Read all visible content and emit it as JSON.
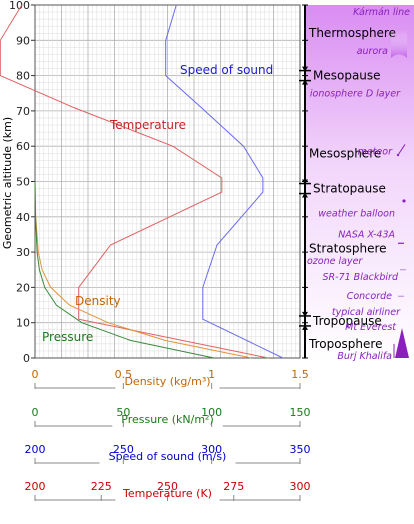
{
  "chart_data": {
    "type": "line",
    "ylabel": "Geometric altitude (km)",
    "ylim": [
      0,
      100
    ],
    "yticks": [
      0,
      10,
      20,
      30,
      40,
      50,
      60,
      70,
      80,
      90,
      100
    ],
    "grid": true,
    "x_axes": [
      {
        "key": "density",
        "label": "Density (kg/m³)",
        "range": [
          0,
          1.5
        ],
        "ticks": [
          "0",
          "0.5",
          "1",
          "1.5"
        ],
        "color": "#c86400"
      },
      {
        "key": "pressure",
        "label": "Pressure (kN/m²)",
        "range": [
          0,
          150
        ],
        "ticks": [
          "0",
          "50",
          "100",
          "150"
        ],
        "color": "#1a7a1a"
      },
      {
        "key": "sound",
        "label": "Speed of sound (m/s)",
        "range": [
          200,
          350
        ],
        "ticks": [
          "200",
          "250",
          "300",
          "350"
        ],
        "color": "#0000cc"
      },
      {
        "key": "temperature",
        "label": "Temperature (K)",
        "range": [
          200,
          300
        ],
        "ticks": [
          "200",
          "225",
          "250",
          "275",
          "300"
        ],
        "color": "#cc0000"
      }
    ],
    "series": [
      {
        "name": "Temperature",
        "axis": "temperature",
        "color": "#e06060",
        "points": [
          [
            288,
            0
          ],
          [
            216.5,
            11
          ],
          [
            216.5,
            20
          ],
          [
            228.5,
            32
          ],
          [
            270.5,
            47
          ],
          [
            270.5,
            51
          ],
          [
            252,
            60
          ],
          [
            214.5,
            71
          ],
          [
            186.9,
            80
          ],
          [
            186.9,
            90
          ],
          [
            195,
            100
          ]
        ]
      },
      {
        "name": "Speed of sound",
        "axis": "sound",
        "color": "#6a6aee",
        "points": [
          [
            340.3,
            0
          ],
          [
            295,
            11
          ],
          [
            295,
            20
          ],
          [
            303,
            32
          ],
          [
            329,
            47
          ],
          [
            329,
            51
          ],
          [
            318,
            60
          ],
          [
            294,
            71
          ],
          [
            274,
            80
          ],
          [
            274,
            90
          ],
          [
            280,
            100
          ]
        ]
      },
      {
        "name": "Density",
        "axis": "density",
        "color": "#e0943a",
        "points": [
          [
            1.225,
            0
          ],
          [
            0.736,
            5
          ],
          [
            0.414,
            10
          ],
          [
            0.195,
            15
          ],
          [
            0.0889,
            20
          ],
          [
            0.0401,
            25
          ],
          [
            0.0184,
            30
          ],
          [
            0.00385,
            40
          ],
          [
            0.0,
            50
          ]
        ]
      },
      {
        "name": "Pressure",
        "axis": "pressure",
        "color": "#3a8a3a",
        "points": [
          [
            101.3,
            0
          ],
          [
            54.0,
            5
          ],
          [
            26.5,
            10
          ],
          [
            12.1,
            15
          ],
          [
            5.5,
            20
          ],
          [
            2.5,
            25
          ],
          [
            1.2,
            30
          ],
          [
            0.29,
            40
          ],
          [
            0.0,
            50
          ]
        ]
      }
    ],
    "layers": [
      {
        "name": "Thermosphere",
        "altitude": 92
      },
      {
        "name": "Mesopause",
        "altitude": 80,
        "boundary": true
      },
      {
        "name": "Mesosphere",
        "altitude": 58
      },
      {
        "name": "Stratopause",
        "altitude": 48,
        "boundary": true
      },
      {
        "name": "Stratosphere",
        "altitude": 31
      },
      {
        "name": "Tropopause",
        "altitude": 10.5,
        "boundary": true
      },
      {
        "name": "Troposphere",
        "altitude": 4
      }
    ],
    "annotations": [
      {
        "text": "Kármán line",
        "altitude": 98
      },
      {
        "text": "aurora",
        "altitude": 87
      },
      {
        "text": "ionosphere D layer",
        "altitude": 75
      },
      {
        "text": "meteor",
        "altitude": 58.5
      },
      {
        "text": "weather balloon",
        "altitude": 41
      },
      {
        "text": "NASA X-43A",
        "altitude": 35
      },
      {
        "text": "ozone layer",
        "altitude": 27.5
      },
      {
        "text": "SR-71 Blackbird",
        "altitude": 23
      },
      {
        "text": "Concorde",
        "altitude": 17.5
      },
      {
        "text": "typical airliner",
        "altitude": 13
      },
      {
        "text": "Mt Everest",
        "altitude": 8.8
      },
      {
        "text": "Burj Khalifa",
        "altitude": 0.5
      }
    ],
    "colors": {
      "annotation": "#8a1fbd",
      "sky_top": "#e7a6f7",
      "grid": "#c8c8c8"
    }
  }
}
